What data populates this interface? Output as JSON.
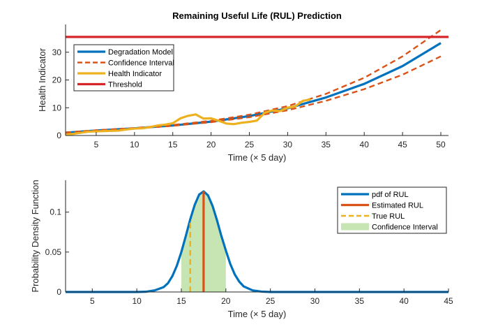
{
  "chart_data": [
    {
      "type": "line",
      "title": "Remaining Useful Life (RUL) Prediction",
      "xlabel": "Time (× 5 day)",
      "ylabel": "Health Indicator",
      "xlim": [
        1,
        51
      ],
      "ylim": [
        0,
        40
      ],
      "xticks": [
        5,
        10,
        15,
        20,
        25,
        30,
        35,
        40,
        45,
        50
      ],
      "yticks": [
        0,
        10,
        20,
        30
      ],
      "grid": false,
      "legend": "top-left",
      "series": [
        {
          "name": "Degradation Model",
          "color": "#0072BD",
          "style": "solid",
          "x": [
            1,
            5,
            10,
            15,
            20,
            25,
            30,
            35,
            40,
            45,
            50
          ],
          "y": [
            1.0,
            1.8,
            2.6,
            3.6,
            5.0,
            7.0,
            9.8,
            13.7,
            18.6,
            25.0,
            33.3
          ]
        },
        {
          "name": "Confidence Interval",
          "color": "#D95319",
          "style": "dashed",
          "x": [
            1,
            5,
            10,
            15,
            20,
            25,
            30,
            35,
            40,
            45,
            50
          ],
          "y": [
            1.1,
            1.9,
            2.7,
            3.8,
            5.3,
            7.5,
            10.6,
            15.0,
            20.8,
            28.5,
            38.0
          ]
        },
        {
          "name": "",
          "color": "#D95319",
          "style": "dashed",
          "x": [
            1,
            5,
            10,
            15,
            20,
            25,
            30,
            35,
            40,
            45,
            50
          ],
          "y": [
            0.9,
            1.7,
            2.5,
            3.5,
            4.8,
            6.6,
            9.1,
            12.5,
            16.7,
            21.9,
            28.5
          ]
        },
        {
          "name": "Health Indicator",
          "color": "#EDB120",
          "style": "solid",
          "x": [
            1,
            2,
            3,
            4,
            5,
            6,
            7,
            8,
            9,
            10,
            11,
            12,
            13,
            14,
            15,
            16,
            17,
            18,
            19,
            20,
            21,
            22,
            23,
            24,
            25,
            26,
            27,
            28,
            29,
            30,
            31,
            32,
            33
          ],
          "y": [
            0.3,
            0.6,
            1.0,
            1.4,
            1.5,
            1.6,
            1.7,
            1.8,
            2.2,
            2.5,
            2.6,
            3.0,
            3.6,
            3.9,
            4.4,
            6.2,
            7.1,
            7.6,
            6.1,
            6.2,
            5.3,
            4.3,
            4.1,
            4.6,
            4.9,
            5.4,
            8.2,
            9.0,
            8.8,
            10.0,
            10.5,
            12.5,
            13.0
          ]
        },
        {
          "name": "Threshold",
          "color": "#D7262A",
          "style": "solid",
          "x": [
            1,
            51
          ],
          "y": [
            35.5,
            35.5
          ]
        }
      ]
    },
    {
      "type": "line",
      "title": "",
      "xlabel": "Time (× 5 day)",
      "ylabel": "Probability Density Function",
      "xlim": [
        2,
        45
      ],
      "ylim": [
        0,
        0.14
      ],
      "xticks": [
        5,
        10,
        15,
        20,
        25,
        30,
        35,
        40,
        45
      ],
      "yticks": [
        0,
        0.05,
        0.1
      ],
      "ytick_labels": [
        "0",
        "0.05",
        "0.1"
      ],
      "grid": false,
      "legend": "top-right",
      "series": [
        {
          "name": "pdf of RUL",
          "color": "#0072BD",
          "style": "solid",
          "x": [
            2,
            5,
            8,
            10,
            11,
            12,
            13,
            13.5,
            14,
            14.5,
            15,
            15.5,
            16,
            16.5,
            17,
            17.5,
            18,
            18.5,
            19,
            19.5,
            20,
            20.5,
            21,
            21.5,
            22,
            23,
            24,
            25,
            30,
            35,
            40,
            45
          ],
          "y": [
            0,
            0,
            0,
            0,
            0.0003,
            0.002,
            0.006,
            0.011,
            0.02,
            0.033,
            0.05,
            0.07,
            0.091,
            0.109,
            0.122,
            0.126,
            0.121,
            0.108,
            0.09,
            0.07,
            0.052,
            0.035,
            0.022,
            0.013,
            0.007,
            0.002,
            0.0005,
            0,
            0,
            0,
            0,
            0
          ]
        },
        {
          "name": "Estimated RUL",
          "color": "#D95319",
          "style": "solid",
          "x": [
            17.5,
            17.5
          ],
          "y": [
            0,
            0.126
          ]
        },
        {
          "name": "True RUL",
          "color": "#EDB120",
          "style": "dashed",
          "x": [
            16.0,
            16.0
          ],
          "y": [
            0,
            0.091
          ]
        },
        {
          "name": "Confidence Interval",
          "type": "area",
          "color": "#C6E5B3",
          "x_range": [
            15.0,
            20.0
          ]
        }
      ]
    }
  ]
}
